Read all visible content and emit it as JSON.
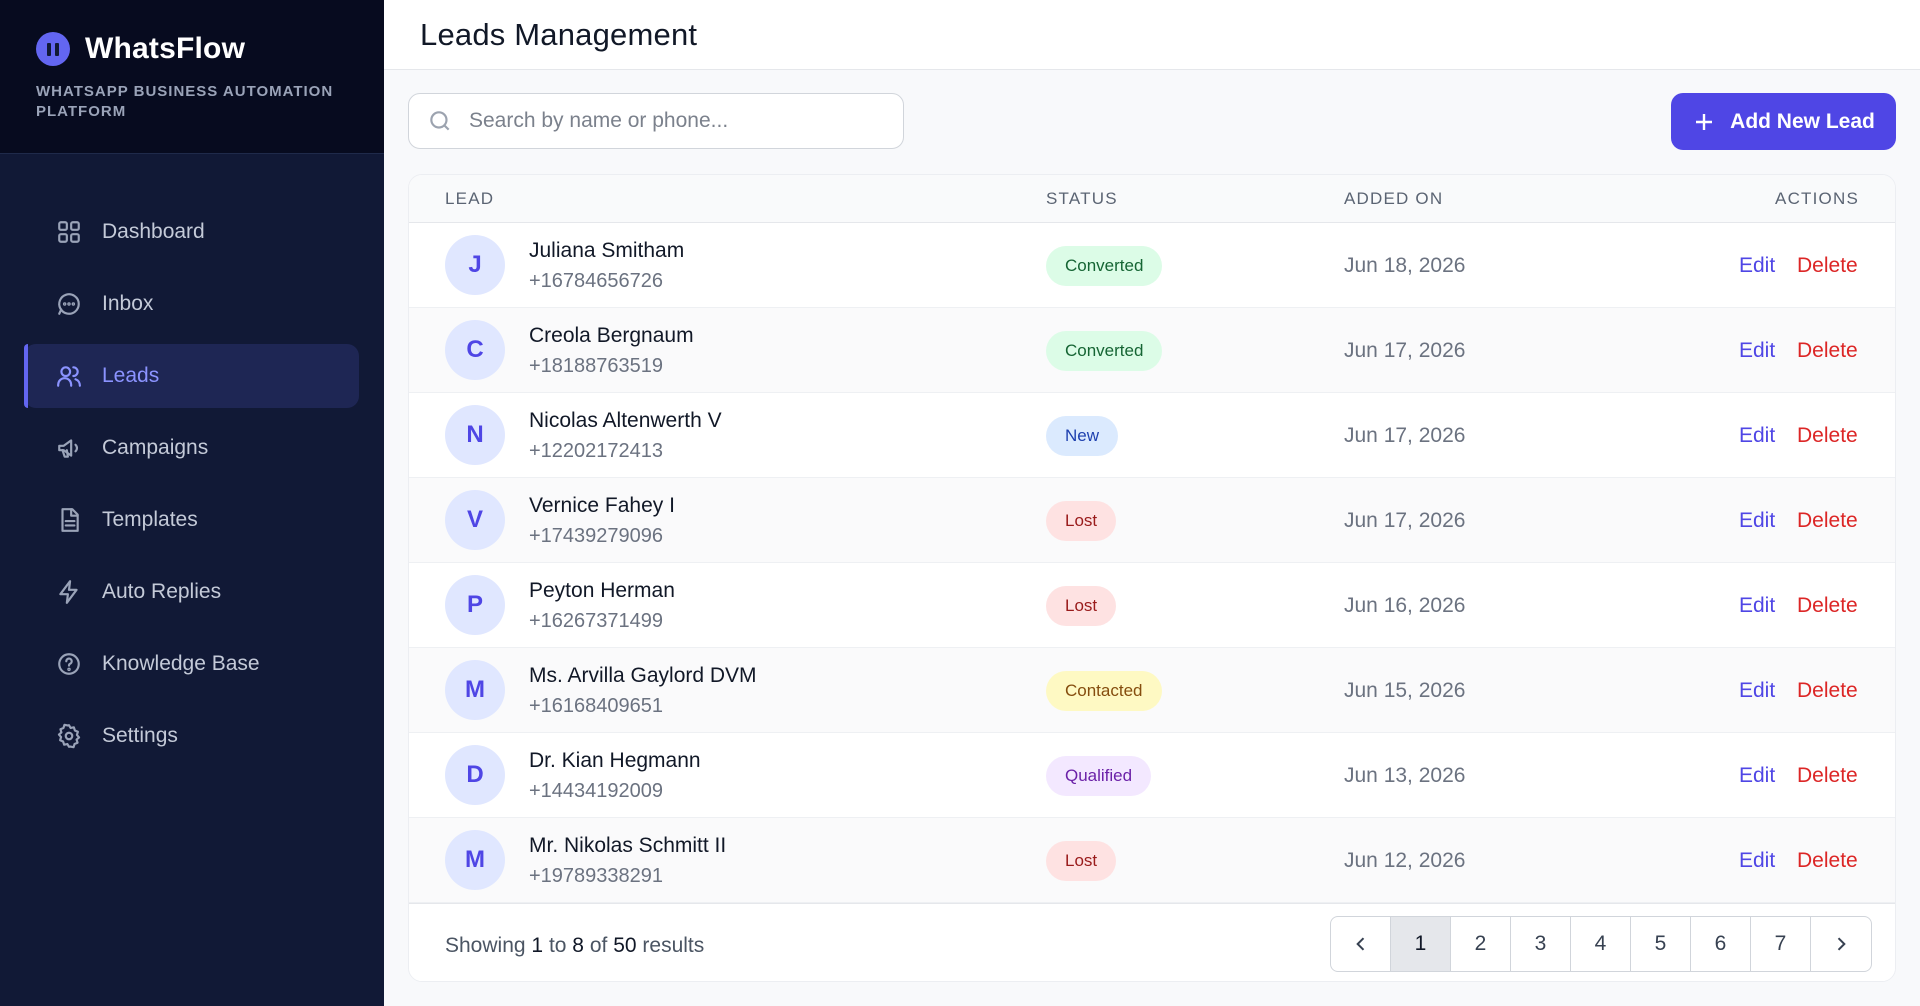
{
  "app": {
    "name": "WhatsFlow",
    "tagline": "WHATSAPP BUSINESS AUTOMATION PLATFORM"
  },
  "nav": [
    {
      "label": "Dashboard",
      "icon": "grid-icon",
      "active": false
    },
    {
      "label": "Inbox",
      "icon": "chat-bubble-icon",
      "active": false
    },
    {
      "label": "Leads",
      "icon": "users-icon",
      "active": true
    },
    {
      "label": "Campaigns",
      "icon": "megaphone-icon",
      "active": false
    },
    {
      "label": "Templates",
      "icon": "document-icon",
      "active": false
    },
    {
      "label": "Auto Replies",
      "icon": "lightning-icon",
      "active": false
    },
    {
      "label": "Knowledge Base",
      "icon": "help-circle-icon",
      "active": false
    },
    {
      "label": "Settings",
      "icon": "gear-icon",
      "active": false
    }
  ],
  "header": {
    "title": "Leads Management"
  },
  "search": {
    "placeholder": "Search by name or phone...",
    "value": ""
  },
  "add_button": {
    "label": "Add New Lead"
  },
  "table": {
    "columns": {
      "lead": "LEAD",
      "status": "STATUS",
      "added_on": "ADDED ON",
      "actions": "ACTIONS"
    },
    "rows": [
      {
        "initial": "J",
        "name": "Juliana Smitham",
        "phone": "+16784656726",
        "status": "Converted",
        "added": "Jun 18, 2026"
      },
      {
        "initial": "C",
        "name": "Creola Bergnaum",
        "phone": "+18188763519",
        "status": "Converted",
        "added": "Jun 17, 2026"
      },
      {
        "initial": "N",
        "name": "Nicolas Altenwerth V",
        "phone": "+12202172413",
        "status": "New",
        "added": "Jun 17, 2026"
      },
      {
        "initial": "V",
        "name": "Vernice Fahey I",
        "phone": "+17439279096",
        "status": "Lost",
        "added": "Jun 17, 2026"
      },
      {
        "initial": "P",
        "name": "Peyton Herman",
        "phone": "+16267371499",
        "status": "Lost",
        "added": "Jun 16, 2026"
      },
      {
        "initial": "M",
        "name": "Ms. Arvilla Gaylord DVM",
        "phone": "+16168409651",
        "status": "Contacted",
        "added": "Jun 15, 2026"
      },
      {
        "initial": "D",
        "name": "Dr. Kian Hegmann",
        "phone": "+14434192009",
        "status": "Qualified",
        "added": "Jun 13, 2026"
      },
      {
        "initial": "M",
        "name": "Mr. Nikolas Schmitt II",
        "phone": "+19789338291",
        "status": "Lost",
        "added": "Jun 12, 2026"
      }
    ],
    "edit_label": "Edit",
    "delete_label": "Delete"
  },
  "status_colors": {
    "Converted": {
      "bg": "#dcfce7",
      "fg": "#166534"
    },
    "New": {
      "bg": "#dbeafe",
      "fg": "#1e40af"
    },
    "Lost": {
      "bg": "#fee2e2",
      "fg": "#991b1b"
    },
    "Contacted": {
      "bg": "#fef9c3",
      "fg": "#854d0e"
    },
    "Qualified": {
      "bg": "#f3e8ff",
      "fg": "#6b21a8"
    }
  },
  "pagination": {
    "showing_prefix": "Showing",
    "from": "1",
    "to_word": "to",
    "to": "8",
    "of_word": "of",
    "total": "50",
    "suffix": "results",
    "pages": [
      "1",
      "2",
      "3",
      "4",
      "5",
      "6",
      "7"
    ],
    "current": "1"
  },
  "colors": {
    "accent": "#4f46e5",
    "sidebar": "#111936",
    "danger": "#dc2626"
  }
}
